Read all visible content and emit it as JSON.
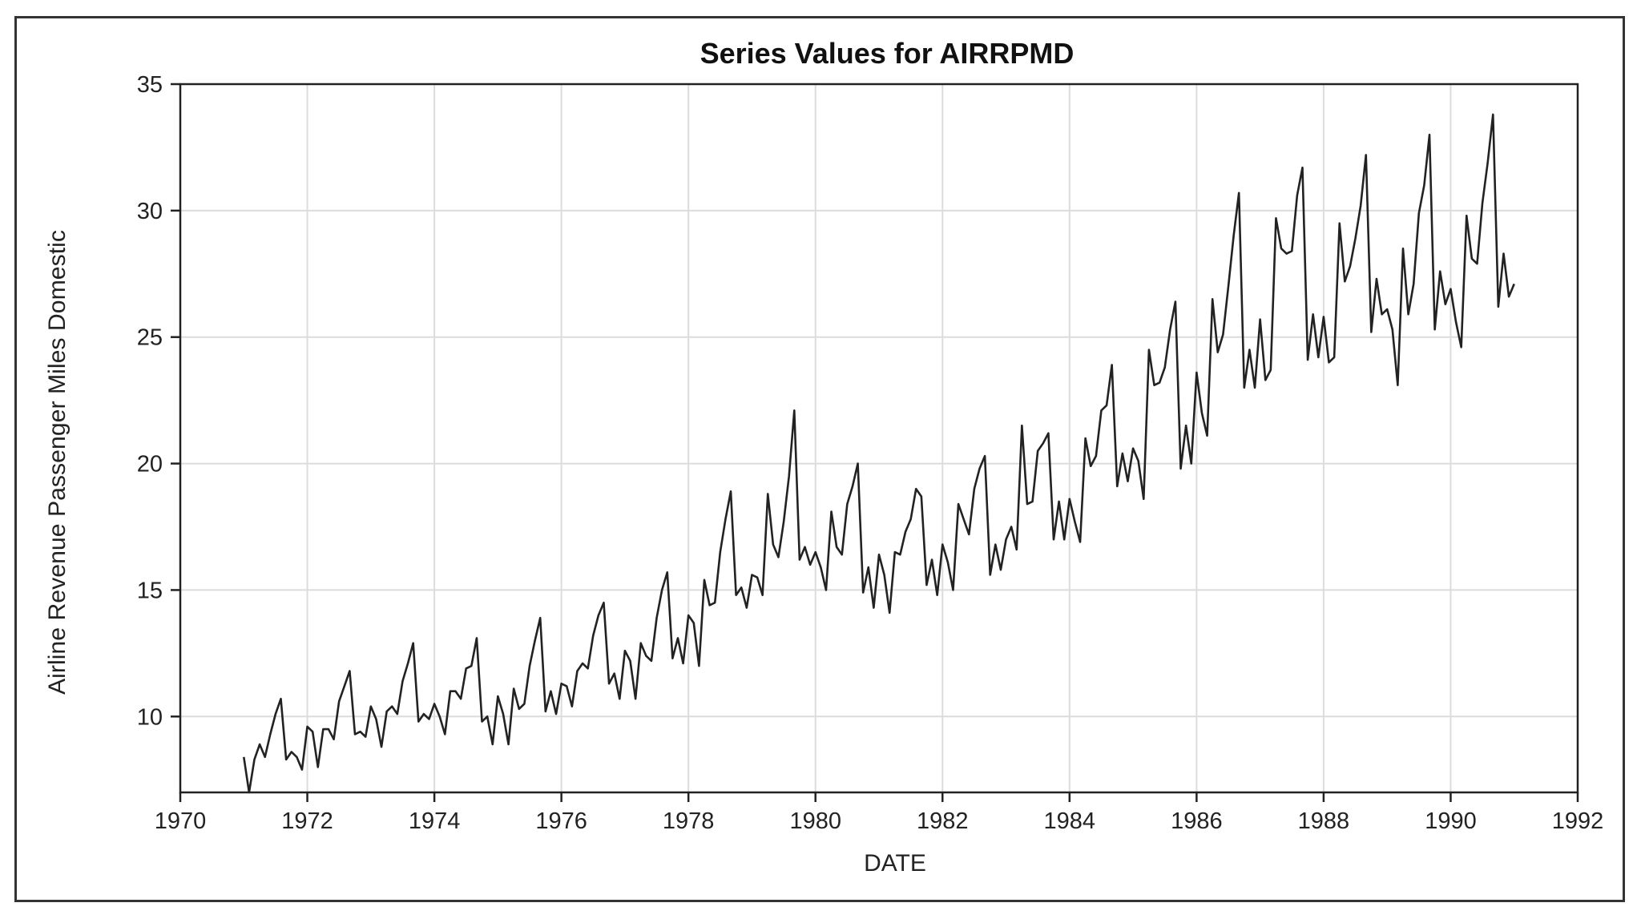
{
  "chart_data": {
    "type": "line",
    "title": "Series Values for AIRRPMD",
    "xlabel": "DATE",
    "ylabel": "Airline Revenue Passenger Miles Domestic",
    "xlim": [
      1970,
      1992
    ],
    "ylim": [
      7,
      35
    ],
    "x_ticks": [
      1970,
      1972,
      1974,
      1976,
      1978,
      1980,
      1982,
      1984,
      1986,
      1988,
      1990,
      1992
    ],
    "y_ticks": [
      10,
      15,
      20,
      25,
      30,
      35
    ],
    "grid": true,
    "legend": "none",
    "series": [
      {
        "name": "AIRRPMD",
        "x_start": 1971.0,
        "x_step": 0.083333,
        "values": [
          8.4,
          7.0,
          8.3,
          8.9,
          8.4,
          9.3,
          10.1,
          10.7,
          8.3,
          8.6,
          8.4,
          7.9,
          9.6,
          9.4,
          8.0,
          9.5,
          9.5,
          9.1,
          10.6,
          11.2,
          11.8,
          9.3,
          9.4,
          9.2,
          10.4,
          9.9,
          8.8,
          10.2,
          10.4,
          10.1,
          11.4,
          12.1,
          12.9,
          9.8,
          10.1,
          9.9,
          10.5,
          10.0,
          9.3,
          11.0,
          11.0,
          10.7,
          11.9,
          12.0,
          13.1,
          9.8,
          10.0,
          8.9,
          10.8,
          10.1,
          8.9,
          11.1,
          10.3,
          10.5,
          12.0,
          13.0,
          13.9,
          10.2,
          11.0,
          10.1,
          11.3,
          11.2,
          10.4,
          11.8,
          12.1,
          11.9,
          13.2,
          14.0,
          14.5,
          11.3,
          11.7,
          10.7,
          12.6,
          12.2,
          10.7,
          12.9,
          12.4,
          12.2,
          13.9,
          15.0,
          15.7,
          12.3,
          13.1,
          12.1,
          14.0,
          13.7,
          12.0,
          15.4,
          14.4,
          14.5,
          16.5,
          17.8,
          18.9,
          14.8,
          15.1,
          14.3,
          15.6,
          15.5,
          14.8,
          18.8,
          16.8,
          16.3,
          17.7,
          19.5,
          22.1,
          16.2,
          16.7,
          16.0,
          16.5,
          15.9,
          15.0,
          18.1,
          16.7,
          16.4,
          18.4,
          19.1,
          20.0,
          14.9,
          15.9,
          14.3,
          16.4,
          15.6,
          14.1,
          16.5,
          16.4,
          17.3,
          17.8,
          19.0,
          18.7,
          15.2,
          16.2,
          14.8,
          16.8,
          16.1,
          15.0,
          18.4,
          17.8,
          17.2,
          19.0,
          19.8,
          20.3,
          15.6,
          16.8,
          15.8,
          17.0,
          17.5,
          16.6,
          21.5,
          18.4,
          18.5,
          20.5,
          20.8,
          21.2,
          17.0,
          18.5,
          17.0,
          18.6,
          17.7,
          16.9,
          21.0,
          19.9,
          20.3,
          22.1,
          22.3,
          23.9,
          19.1,
          20.4,
          19.3,
          20.6,
          20.1,
          18.6,
          24.5,
          23.1,
          23.2,
          23.8,
          25.3,
          26.4,
          19.8,
          21.5,
          20.0,
          23.6,
          22.0,
          21.1,
          26.5,
          24.4,
          25.1,
          27.0,
          29.0,
          30.7,
          23.0,
          24.5,
          23.0,
          25.7,
          23.3,
          23.7,
          29.7,
          28.5,
          28.3,
          28.4,
          30.6,
          31.7,
          24.1,
          25.9,
          24.2,
          25.8,
          24.0,
          24.2,
          29.5,
          27.2,
          27.8,
          28.9,
          30.2,
          32.2,
          25.2,
          27.3,
          25.9,
          26.1,
          25.3,
          23.1,
          28.5,
          25.9,
          27.1,
          29.9,
          31.0,
          33.0,
          25.3,
          27.6,
          26.3,
          26.9,
          25.6,
          24.6,
          29.8,
          28.1,
          27.9,
          30.3,
          31.9,
          33.8,
          26.2,
          28.3,
          26.6,
          27.1
        ]
      }
    ]
  }
}
